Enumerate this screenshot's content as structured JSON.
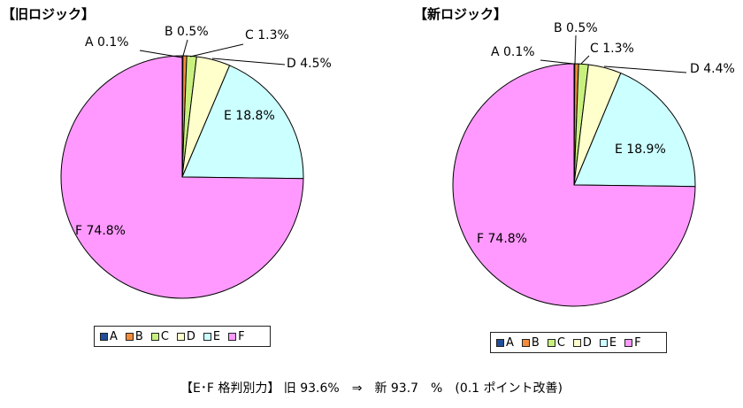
{
  "chart_data": [
    {
      "type": "pie",
      "title": "【旧ロジック】",
      "categories": [
        "A",
        "B",
        "C",
        "D",
        "E",
        "F"
      ],
      "values": [
        0.1,
        0.5,
        1.3,
        4.5,
        18.8,
        74.8
      ],
      "labels": [
        "A 0.1%",
        "B 0.5%",
        "C 1.3%",
        "D 4.5%",
        "E 18.8%",
        "F 74.8%"
      ],
      "colors": [
        "#1f4e9c",
        "#f28c3a",
        "#c8f07e",
        "#ffffcc",
        "#ccffff",
        "#ff99ff"
      ],
      "legend": "bottom"
    },
    {
      "type": "pie",
      "title": "【新ロジック】",
      "categories": [
        "A",
        "B",
        "C",
        "D",
        "E",
        "F"
      ],
      "values": [
        0.1,
        0.5,
        1.3,
        4.4,
        18.9,
        74.8
      ],
      "labels": [
        "A 0.1%",
        "B 0.5%",
        "C 1.3%",
        "D 4.4%",
        "E 18.9%",
        "F 74.8%"
      ],
      "colors": [
        "#1f4e9c",
        "#f28c3a",
        "#c8f07e",
        "#ffffcc",
        "#ccffff",
        "#ff99ff"
      ],
      "legend": "bottom"
    }
  ],
  "footer": "【E･F 格判別力】 旧 93.6%　⇒　新 93.7　%　(0.1 ポイント改善)"
}
